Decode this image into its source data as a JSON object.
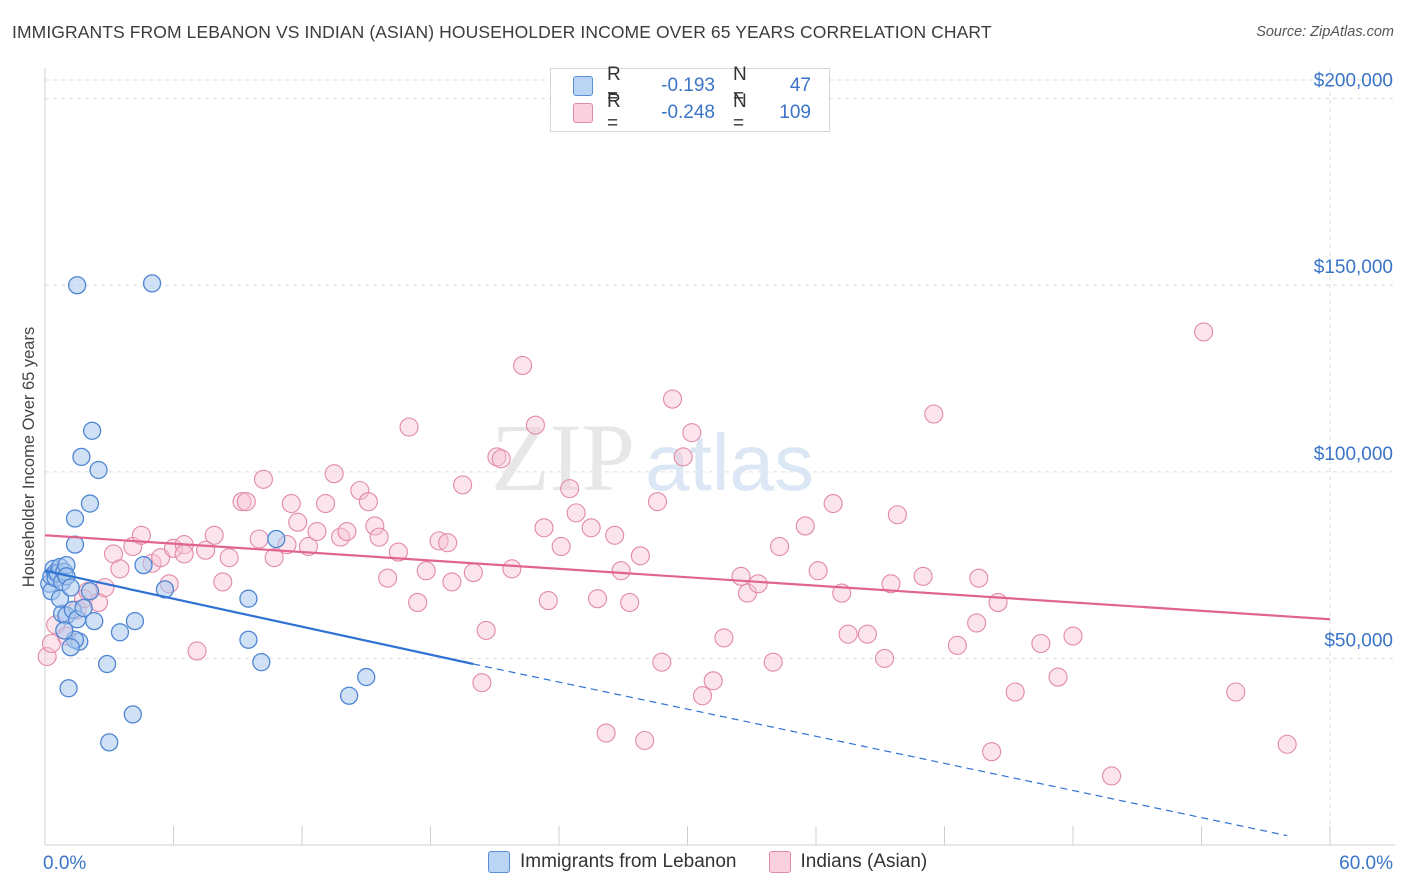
{
  "title": "IMMIGRANTS FROM LEBANON VS INDIAN (ASIAN) HOUSEHOLDER INCOME OVER 65 YEARS CORRELATION CHART",
  "source": "Source: ZipAtlas.com",
  "watermark": {
    "zip": "ZIP",
    "atlas": "atlas"
  },
  "legend": {
    "r_label": "R =",
    "n_label": "N =",
    "rows": [
      {
        "r": "-0.193",
        "n": "47"
      },
      {
        "r": "-0.248",
        "n": "109"
      }
    ]
  },
  "colors": {
    "blue_fill": "#a9c8ef",
    "blue_stroke": "#4f86d3",
    "blue_line": "#2f72d4",
    "pink_fill": "#f6c3d4",
    "pink_stroke": "#e389a8",
    "pink_line": "#e0648f",
    "axis_label": "#3a74c8",
    "grid": "#dedede"
  },
  "chart_data": {
    "type": "scatter",
    "title": "IMMIGRANTS FROM LEBANON VS INDIAN (ASIAN) HOUSEHOLDER INCOME OVER 65 YEARS CORRELATION CHART",
    "xlabel": "",
    "ylabel": "Householder Income Over 65 years",
    "xlim": [
      0,
      60
    ],
    "ylim": [
      0,
      205000
    ],
    "x_tick_labels": [
      "0.0%",
      "60.0%"
    ],
    "y_ticks": [
      50000,
      100000,
      150000,
      200000
    ],
    "y_tick_labels": [
      "$50,000",
      "$100,000",
      "$150,000",
      "$200,000"
    ],
    "grid": true,
    "legend_position": "top-center",
    "series": [
      {
        "name": "Immigrants from Lebanon",
        "color": "blue",
        "trend": {
          "x0": 0,
          "y0": 73500,
          "x1": 20,
          "y1": 48500,
          "dash_to_x": 58,
          "dash_to_y": 2500
        },
        "points": [
          [
            0.2,
            70000
          ],
          [
            0.3,
            68000
          ],
          [
            0.3,
            72000
          ],
          [
            0.4,
            74000
          ],
          [
            0.5,
            73000
          ],
          [
            0.5,
            71500
          ],
          [
            0.6,
            72800
          ],
          [
            0.7,
            74500
          ],
          [
            0.8,
            70500
          ],
          [
            0.9,
            73200
          ],
          [
            1.0,
            75000
          ],
          [
            1.0,
            72000
          ],
          [
            0.8,
            62000
          ],
          [
            1.0,
            61500
          ],
          [
            1.3,
            63000
          ],
          [
            1.5,
            60500
          ],
          [
            1.6,
            54500
          ],
          [
            1.4,
            55000
          ],
          [
            1.2,
            53000
          ],
          [
            1.1,
            42000
          ],
          [
            1.4,
            80500
          ],
          [
            1.4,
            87500
          ],
          [
            1.5,
            150000
          ],
          [
            1.7,
            104000
          ],
          [
            2.2,
            111000
          ],
          [
            2.5,
            100500
          ],
          [
            2.1,
            91500
          ],
          [
            2.1,
            68000
          ],
          [
            2.3,
            60000
          ],
          [
            2.9,
            48500
          ],
          [
            3.5,
            57000
          ],
          [
            4.2,
            60000
          ],
          [
            4.1,
            35000
          ],
          [
            3.0,
            27500
          ],
          [
            5.0,
            150500
          ],
          [
            4.6,
            75000
          ],
          [
            5.6,
            68500
          ],
          [
            9.5,
            66000
          ],
          [
            9.5,
            55000
          ],
          [
            10.1,
            49000
          ],
          [
            10.8,
            82000
          ],
          [
            15.0,
            45000
          ],
          [
            14.2,
            40000
          ],
          [
            0.9,
            57500
          ],
          [
            0.7,
            66000
          ],
          [
            1.2,
            69000
          ],
          [
            1.8,
            63500
          ]
        ]
      },
      {
        "name": "Indians (Asian)",
        "color": "pink",
        "trend": {
          "x0": 0,
          "y0": 83000,
          "x1": 60,
          "y1": 60500
        },
        "points": [
          [
            0.1,
            50500
          ],
          [
            0.3,
            54000
          ],
          [
            0.5,
            59000
          ],
          [
            1.0,
            56000
          ],
          [
            1.5,
            63000
          ],
          [
            1.8,
            66000
          ],
          [
            2.0,
            68000
          ],
          [
            2.5,
            65000
          ],
          [
            2.8,
            69000
          ],
          [
            3.2,
            78000
          ],
          [
            3.5,
            74000
          ],
          [
            4.1,
            80000
          ],
          [
            4.5,
            83000
          ],
          [
            5.0,
            75500
          ],
          [
            5.4,
            77000
          ],
          [
            5.8,
            70000
          ],
          [
            6.0,
            79500
          ],
          [
            6.5,
            80500
          ],
          [
            6.5,
            78000
          ],
          [
            7.1,
            52000
          ],
          [
            7.5,
            79000
          ],
          [
            7.9,
            83000
          ],
          [
            8.3,
            70500
          ],
          [
            8.6,
            77000
          ],
          [
            9.2,
            92000
          ],
          [
            9.4,
            92000
          ],
          [
            10.0,
            82000
          ],
          [
            10.2,
            98000
          ],
          [
            10.7,
            77000
          ],
          [
            11.3,
            80500
          ],
          [
            11.5,
            91500
          ],
          [
            11.8,
            86500
          ],
          [
            12.3,
            80000
          ],
          [
            12.7,
            84000
          ],
          [
            13.1,
            91500
          ],
          [
            13.5,
            99500
          ],
          [
            13.8,
            82500
          ],
          [
            14.1,
            84000
          ],
          [
            14.7,
            95000
          ],
          [
            15.1,
            92000
          ],
          [
            15.4,
            85500
          ],
          [
            15.6,
            82500
          ],
          [
            16.0,
            71500
          ],
          [
            16.5,
            78500
          ],
          [
            17.0,
            112000
          ],
          [
            17.4,
            65000
          ],
          [
            17.8,
            73500
          ],
          [
            18.4,
            81500
          ],
          [
            18.8,
            81000
          ],
          [
            19.0,
            70500
          ],
          [
            19.5,
            96500
          ],
          [
            20.0,
            73000
          ],
          [
            20.4,
            43500
          ],
          [
            20.6,
            57500
          ],
          [
            21.1,
            104000
          ],
          [
            21.3,
            103500
          ],
          [
            21.8,
            74000
          ],
          [
            22.3,
            128500
          ],
          [
            22.9,
            112500
          ],
          [
            23.3,
            85000
          ],
          [
            23.5,
            65500
          ],
          [
            24.1,
            80000
          ],
          [
            24.5,
            95500
          ],
          [
            24.8,
            89000
          ],
          [
            25.5,
            85000
          ],
          [
            25.8,
            66000
          ],
          [
            26.2,
            30000
          ],
          [
            26.6,
            83000
          ],
          [
            26.9,
            73500
          ],
          [
            27.3,
            65000
          ],
          [
            27.8,
            77500
          ],
          [
            28.0,
            28000
          ],
          [
            28.6,
            92000
          ],
          [
            28.8,
            49000
          ],
          [
            29.3,
            119500
          ],
          [
            29.8,
            104000
          ],
          [
            30.2,
            110500
          ],
          [
            30.7,
            40000
          ],
          [
            31.2,
            44000
          ],
          [
            31.7,
            55500
          ],
          [
            32.5,
            72000
          ],
          [
            32.8,
            67500
          ],
          [
            33.3,
            70000
          ],
          [
            34.0,
            49000
          ],
          [
            34.3,
            80000
          ],
          [
            35.5,
            85500
          ],
          [
            36.1,
            73500
          ],
          [
            36.8,
            91500
          ],
          [
            37.2,
            67500
          ],
          [
            37.5,
            56500
          ],
          [
            38.4,
            56500
          ],
          [
            39.2,
            50000
          ],
          [
            39.5,
            70000
          ],
          [
            39.8,
            88500
          ],
          [
            41.0,
            72000
          ],
          [
            41.5,
            115500
          ],
          [
            42.6,
            53500
          ],
          [
            43.5,
            59500
          ],
          [
            43.6,
            71500
          ],
          [
            44.2,
            25000
          ],
          [
            44.5,
            65000
          ],
          [
            45.3,
            41000
          ],
          [
            46.5,
            54000
          ],
          [
            47.3,
            45000
          ],
          [
            48.0,
            56000
          ],
          [
            49.8,
            18500
          ],
          [
            54.1,
            137500
          ],
          [
            55.6,
            41000
          ],
          [
            58.0,
            27000
          ]
        ]
      }
    ]
  }
}
